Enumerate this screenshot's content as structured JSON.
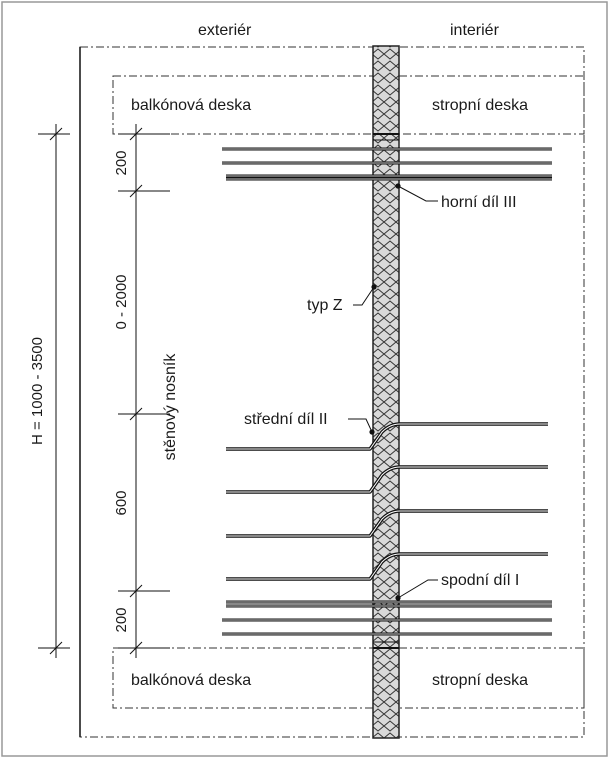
{
  "labels": {
    "exterior": "exteriér",
    "interior": "interiér",
    "balcony_top": "balkónová deska",
    "ceiling_top": "stropní deska",
    "balcony_bottom": "balkónová deska",
    "ceiling_bottom": "stropní deska",
    "upper_part": "horní díl III",
    "type": "typ Z",
    "middle_part": "střední díl II",
    "lower_part": "spodní díl I",
    "wall_beam": "stěnový nosník"
  },
  "dimensions": {
    "total_height": "H = 1000 - 3500",
    "top_zone": "200",
    "middle_zone": "0 - 2000",
    "lower_zone": "600",
    "bottom_zone": "200"
  }
}
